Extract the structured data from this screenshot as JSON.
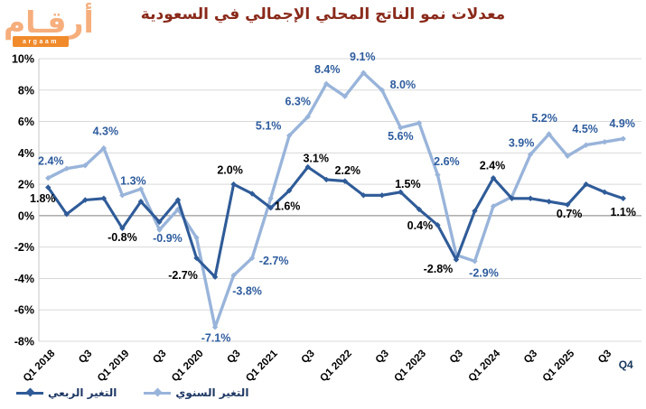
{
  "logo": {
    "arabic": "أرقـام",
    "latin": "argaam"
  },
  "title": "معدلات نمو الناتج المحلي الإجمالي في السعودية",
  "colors": {
    "title_text": "#8A2A1B",
    "grid_line": "#D9D9D9",
    "zero_line": "#7F7F7F",
    "axis_line": "#C6C6C6",
    "axis_text": "#000000",
    "q4_tick_label": "#17375D",
    "legend_text": "#1F3864",
    "quarterly_series": "#2F5B98",
    "annual_series": "#99B4DA",
    "annual_label_text": "#2E5C9E",
    "quarterly_label_text": "#000000",
    "logo_orange": "#F6AE7C",
    "logo_strip_orange": "#F08A2B"
  },
  "chart_data": {
    "type": "line",
    "title": "معدلات نمو الناتج المحلي الإجمالي في السعودية",
    "grid": true,
    "legend_position": "bottom-left",
    "y_axis": {
      "min": -8,
      "max": 10,
      "step": 2,
      "format": "percent",
      "tick_labels": [
        "10%",
        "8%",
        "6%",
        "4%",
        "2%",
        "0%",
        "-2%",
        "-4%",
        "-6%",
        "-8%"
      ]
    },
    "categories": [
      "Q1 2018",
      "Q2 2018",
      "Q3 2018",
      "Q4 2018",
      "Q1 2019",
      "Q2 2019",
      "Q3 2019",
      "Q4 2019",
      "Q1 2020",
      "Q2 2020",
      "Q3 2020",
      "Q4 2020",
      "Q1 2021",
      "Q2 2021",
      "Q3 2021",
      "Q4 2021",
      "Q1 2022",
      "Q2 2022",
      "Q3 2022",
      "Q4 2022",
      "Q1 2023",
      "Q2 2023",
      "Q3 2023",
      "Q4 2023",
      "Q1 2024",
      "Q2 2024",
      "Q3 2024",
      "Q4 2024",
      "Q1 2025",
      "Q2 2025",
      "Q3 2025",
      "Q4 2025"
    ],
    "x_tick_labels": [
      {
        "index": 0,
        "label": "Q1 2018"
      },
      {
        "index": 2,
        "label": "Q3"
      },
      {
        "index": 4,
        "label": "Q1 2019"
      },
      {
        "index": 6,
        "label": "Q3"
      },
      {
        "index": 8,
        "label": "Q1 2020"
      },
      {
        "index": 10,
        "label": "Q3"
      },
      {
        "index": 12,
        "label": "Q1 2021"
      },
      {
        "index": 14,
        "label": "Q3"
      },
      {
        "index": 16,
        "label": "Q1 2022"
      },
      {
        "index": 18,
        "label": "Q3"
      },
      {
        "index": 20,
        "label": "Q1 2023"
      },
      {
        "index": 22,
        "label": "Q3"
      },
      {
        "index": 24,
        "label": "Q1 2024"
      },
      {
        "index": 26,
        "label": "Q3"
      },
      {
        "index": 28,
        "label": "Q1 2025"
      },
      {
        "index": 30,
        "label": "Q3"
      },
      {
        "index": 31,
        "label": "Q4",
        "horizontal": true,
        "color": "#17375D"
      }
    ],
    "series": [
      {
        "name": "التغير السنوي",
        "color": "#99B4DA",
        "label_color": "#2E5C9E",
        "line_width": 3.4,
        "values": [
          2.4,
          3.0,
          3.2,
          4.3,
          1.3,
          1.7,
          -0.9,
          0.4,
          -1.4,
          -7.1,
          -3.8,
          -2.7,
          1.1,
          5.1,
          6.3,
          8.4,
          7.6,
          9.1,
          8.0,
          5.6,
          5.9,
          2.6,
          -2.5,
          -2.9,
          0.6,
          1.2,
          3.9,
          5.2,
          3.8,
          4.5,
          4.7,
          4.9
        ],
        "point_labels": [
          {
            "index": 0,
            "text": "2.4%",
            "dx": 3,
            "dy": -19
          },
          {
            "index": 3,
            "text": "4.3%",
            "dx": 2,
            "dy": -19
          },
          {
            "index": 4,
            "text": "1.3%",
            "dx": 12,
            "dy": -16
          },
          {
            "index": 6,
            "text": "-0.9%",
            "dx": 9,
            "dy": 9
          },
          {
            "index": 9,
            "text": "-7.1%",
            "dx": 1,
            "dy": 12
          },
          {
            "index": 10,
            "text": "-3.8%",
            "dx": 15,
            "dy": 17
          },
          {
            "index": 11,
            "text": "-2.7%",
            "dx": 24,
            "dy": 3
          },
          {
            "index": 13,
            "text": "5.1%",
            "dx": -23,
            "dy": -11
          },
          {
            "index": 14,
            "text": "6.3%",
            "dx": -11,
            "dy": -17
          },
          {
            "index": 15,
            "text": "8.4%",
            "dx": 1,
            "dy": -16
          },
          {
            "index": 17,
            "text": "9.1%",
            "dx": -1,
            "dy": -18
          },
          {
            "index": 18,
            "text": "8.0%",
            "dx": 23,
            "dy": -6
          },
          {
            "index": 19,
            "text": "5.6%",
            "dx": 0,
            "dy": 9
          },
          {
            "index": 21,
            "text": "2.6%",
            "dx": 10,
            "dy": -15
          },
          {
            "index": 23,
            "text": "-2.9%",
            "dx": 10,
            "dy": 13
          },
          {
            "index": 26,
            "text": "3.9%",
            "dx": -10,
            "dy": -13
          },
          {
            "index": 27,
            "text": "5.2%",
            "dx": -5,
            "dy": -18
          },
          {
            "index": 29,
            "text": "4.5%",
            "dx": -1,
            "dy": -18
          },
          {
            "index": 31,
            "text": "4.9%",
            "dx": -1,
            "dy": -17
          }
        ]
      },
      {
        "name": "التغير الربعي",
        "color": "#2F5B98",
        "label_color": "#000000",
        "line_width": 3.1,
        "values": [
          1.8,
          0.1,
          1.0,
          1.1,
          -0.8,
          0.9,
          -0.4,
          1.0,
          -2.7,
          -3.9,
          2.0,
          1.4,
          0.5,
          1.6,
          3.1,
          2.3,
          2.2,
          1.3,
          1.3,
          1.5,
          0.4,
          -0.6,
          -2.8,
          0.3,
          2.4,
          1.1,
          1.1,
          0.9,
          0.7,
          2.0,
          1.5,
          1.1
        ],
        "point_labels": [
          {
            "index": 0,
            "text": "1.8%",
            "dx": -6,
            "dy": 12
          },
          {
            "index": 4,
            "text": "-0.8%",
            "dx": 0,
            "dy": 10
          },
          {
            "index": 8,
            "text": "-2.7%",
            "dx": -15,
            "dy": 19
          },
          {
            "index": 10,
            "text": "2.0%",
            "dx": -4,
            "dy": -16
          },
          {
            "index": 13,
            "text": "1.6%",
            "dx": -2,
            "dy": 17
          },
          {
            "index": 14,
            "text": "3.1%",
            "dx": 9,
            "dy": -10
          },
          {
            "index": 16,
            "text": "2.2%",
            "dx": 3,
            "dy": -12
          },
          {
            "index": 19,
            "text": "1.5%",
            "dx": 8,
            "dy": -9
          },
          {
            "index": 20,
            "text": "0.4%",
            "dx": 1,
            "dy": 18
          },
          {
            "index": 22,
            "text": "-2.8%",
            "dx": -20,
            "dy": 10
          },
          {
            "index": 24,
            "text": "2.4%",
            "dx": -1,
            "dy": -14
          },
          {
            "index": 28,
            "text": "0.7%",
            "dx": 2,
            "dy": 10
          },
          {
            "index": 31,
            "text": "1.1%",
            "dx": 0,
            "dy": 15
          }
        ]
      }
    ]
  }
}
